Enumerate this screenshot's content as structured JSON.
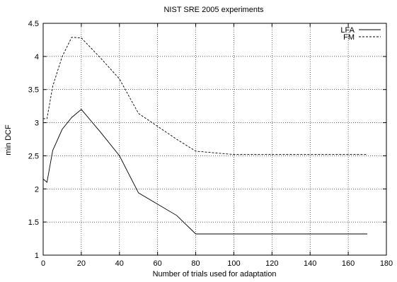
{
  "chart_data": {
    "type": "line",
    "title": "NIST SRE 2005 experiments",
    "xlabel": "Number of trials used for adaptation",
    "ylabel": "min DCF",
    "xlim": [
      0,
      180
    ],
    "ylim": [
      1,
      4.5
    ],
    "xticks": [
      0,
      20,
      40,
      60,
      80,
      100,
      120,
      140,
      160,
      180
    ],
    "yticks": [
      1,
      1.5,
      2,
      2.5,
      3,
      3.5,
      4,
      4.5
    ],
    "ytick_labels": [
      "1",
      "1.5",
      "2",
      "2.5",
      "3",
      "3.5",
      "4",
      "4.5"
    ],
    "grid": true,
    "legend_position": "top-right",
    "series": [
      {
        "name": "LFA",
        "style": "solid",
        "color": "#000000",
        "x": [
          0,
          2,
          5,
          10,
          15,
          20,
          30,
          40,
          50,
          70,
          80,
          100,
          170
        ],
        "y": [
          2.15,
          2.1,
          2.58,
          2.9,
          3.08,
          3.2,
          2.86,
          2.5,
          1.94,
          1.6,
          1.32,
          1.32,
          1.32
        ]
      },
      {
        "name": "FM",
        "style": "dashed",
        "color": "#000000",
        "x": [
          0,
          2,
          5,
          10,
          15,
          20,
          30,
          40,
          50,
          70,
          80,
          100,
          170
        ],
        "y": [
          3.06,
          3.06,
          3.55,
          4.0,
          4.29,
          4.28,
          3.98,
          3.66,
          3.14,
          2.75,
          2.57,
          2.52,
          2.52
        ]
      }
    ]
  }
}
